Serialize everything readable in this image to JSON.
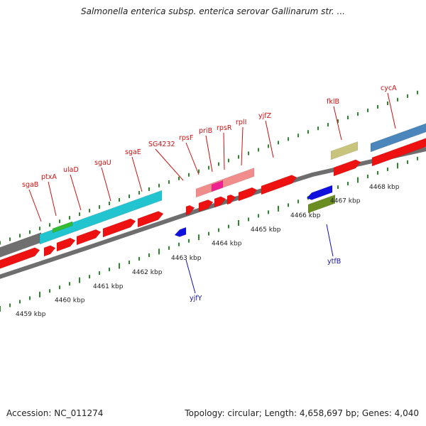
{
  "title": "Salmonella enterica subsp. enterica serovar Gallinarum str. ...",
  "footer": {
    "accession": "Accession: NC_011274",
    "summary": "Topology: circular; Length: 4,658,697 bp; Genes: 4,040"
  },
  "colors": {
    "forward_gene": "#ee1111",
    "reverse_gene": "#1111dd",
    "label_red": "#cc1111",
    "label_blue": "#1111aa",
    "backbone": "#8a8a8a",
    "tick": "#2a8a2a"
  },
  "ticks": [
    {
      "label": "4459 kbp"
    },
    {
      "label": "4460 kbp"
    },
    {
      "label": "4461 kbp"
    },
    {
      "label": "4462 kbp"
    },
    {
      "label": "4463 kbp"
    },
    {
      "label": "4464 kbp"
    },
    {
      "label": "4465 kbp"
    },
    {
      "label": "4466 kbp"
    },
    {
      "label": "4467 kbp"
    },
    {
      "label": "4468 kbp"
    }
  ],
  "gene_labels_top": [
    {
      "name": "sgaB"
    },
    {
      "name": "ptxA"
    },
    {
      "name": "ulaD"
    },
    {
      "name": "sgaU"
    },
    {
      "name": "sgaE"
    },
    {
      "name": "SG4232"
    },
    {
      "name": "rpsF"
    },
    {
      "name": "priB"
    },
    {
      "name": "rpsR"
    },
    {
      "name": "rplI"
    },
    {
      "name": "yjfZ"
    },
    {
      "name": "fklB"
    },
    {
      "name": "cycA"
    }
  ],
  "gene_labels_bottom": [
    {
      "name": "yjfY"
    },
    {
      "name": "ytfB"
    }
  ]
}
